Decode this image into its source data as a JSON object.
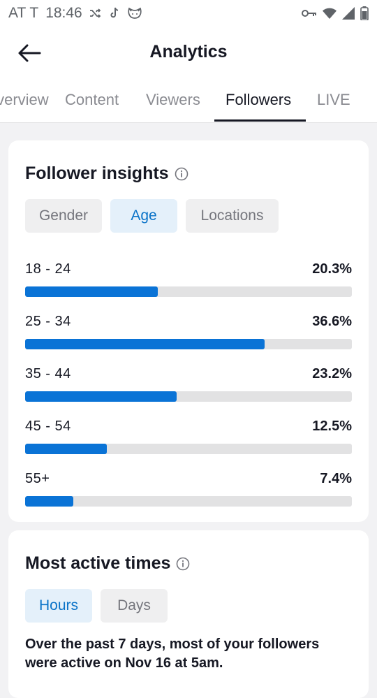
{
  "status_bar": {
    "carrier": "AT T",
    "time": "18:46"
  },
  "header": {
    "title": "Analytics"
  },
  "tabs": [
    {
      "label": "Overview",
      "active": false
    },
    {
      "label": "Content",
      "active": false
    },
    {
      "label": "Viewers",
      "active": false
    },
    {
      "label": "Followers",
      "active": true
    },
    {
      "label": "LIVE",
      "active": false
    }
  ],
  "follower_insights": {
    "title": "Follower insights",
    "segments": [
      {
        "label": "Gender",
        "active": false
      },
      {
        "label": "Age",
        "active": true
      },
      {
        "label": "Locations",
        "active": false
      }
    ],
    "age_groups": [
      {
        "label": "18 - 24",
        "value_text": "20.3%",
        "fraction": 0.203
      },
      {
        "label": "25 - 34",
        "value_text": "36.6%",
        "fraction": 0.366
      },
      {
        "label": "35 - 44",
        "value_text": "23.2%",
        "fraction": 0.232
      },
      {
        "label": "45 - 54",
        "value_text": "12.5%",
        "fraction": 0.125
      },
      {
        "label": "55+",
        "value_text": "7.4%",
        "fraction": 0.074
      }
    ]
  },
  "most_active_times": {
    "title": "Most active times",
    "segments": [
      {
        "label": "Hours",
        "active": true
      },
      {
        "label": "Days",
        "active": false
      }
    ],
    "description": "Over the past 7 days, most of your followers were active on Nov 16 at 5am."
  },
  "colors": {
    "accent": "#0a73d6",
    "active_segment_bg": "#e4f0fa",
    "track": "#e2e2e3"
  }
}
